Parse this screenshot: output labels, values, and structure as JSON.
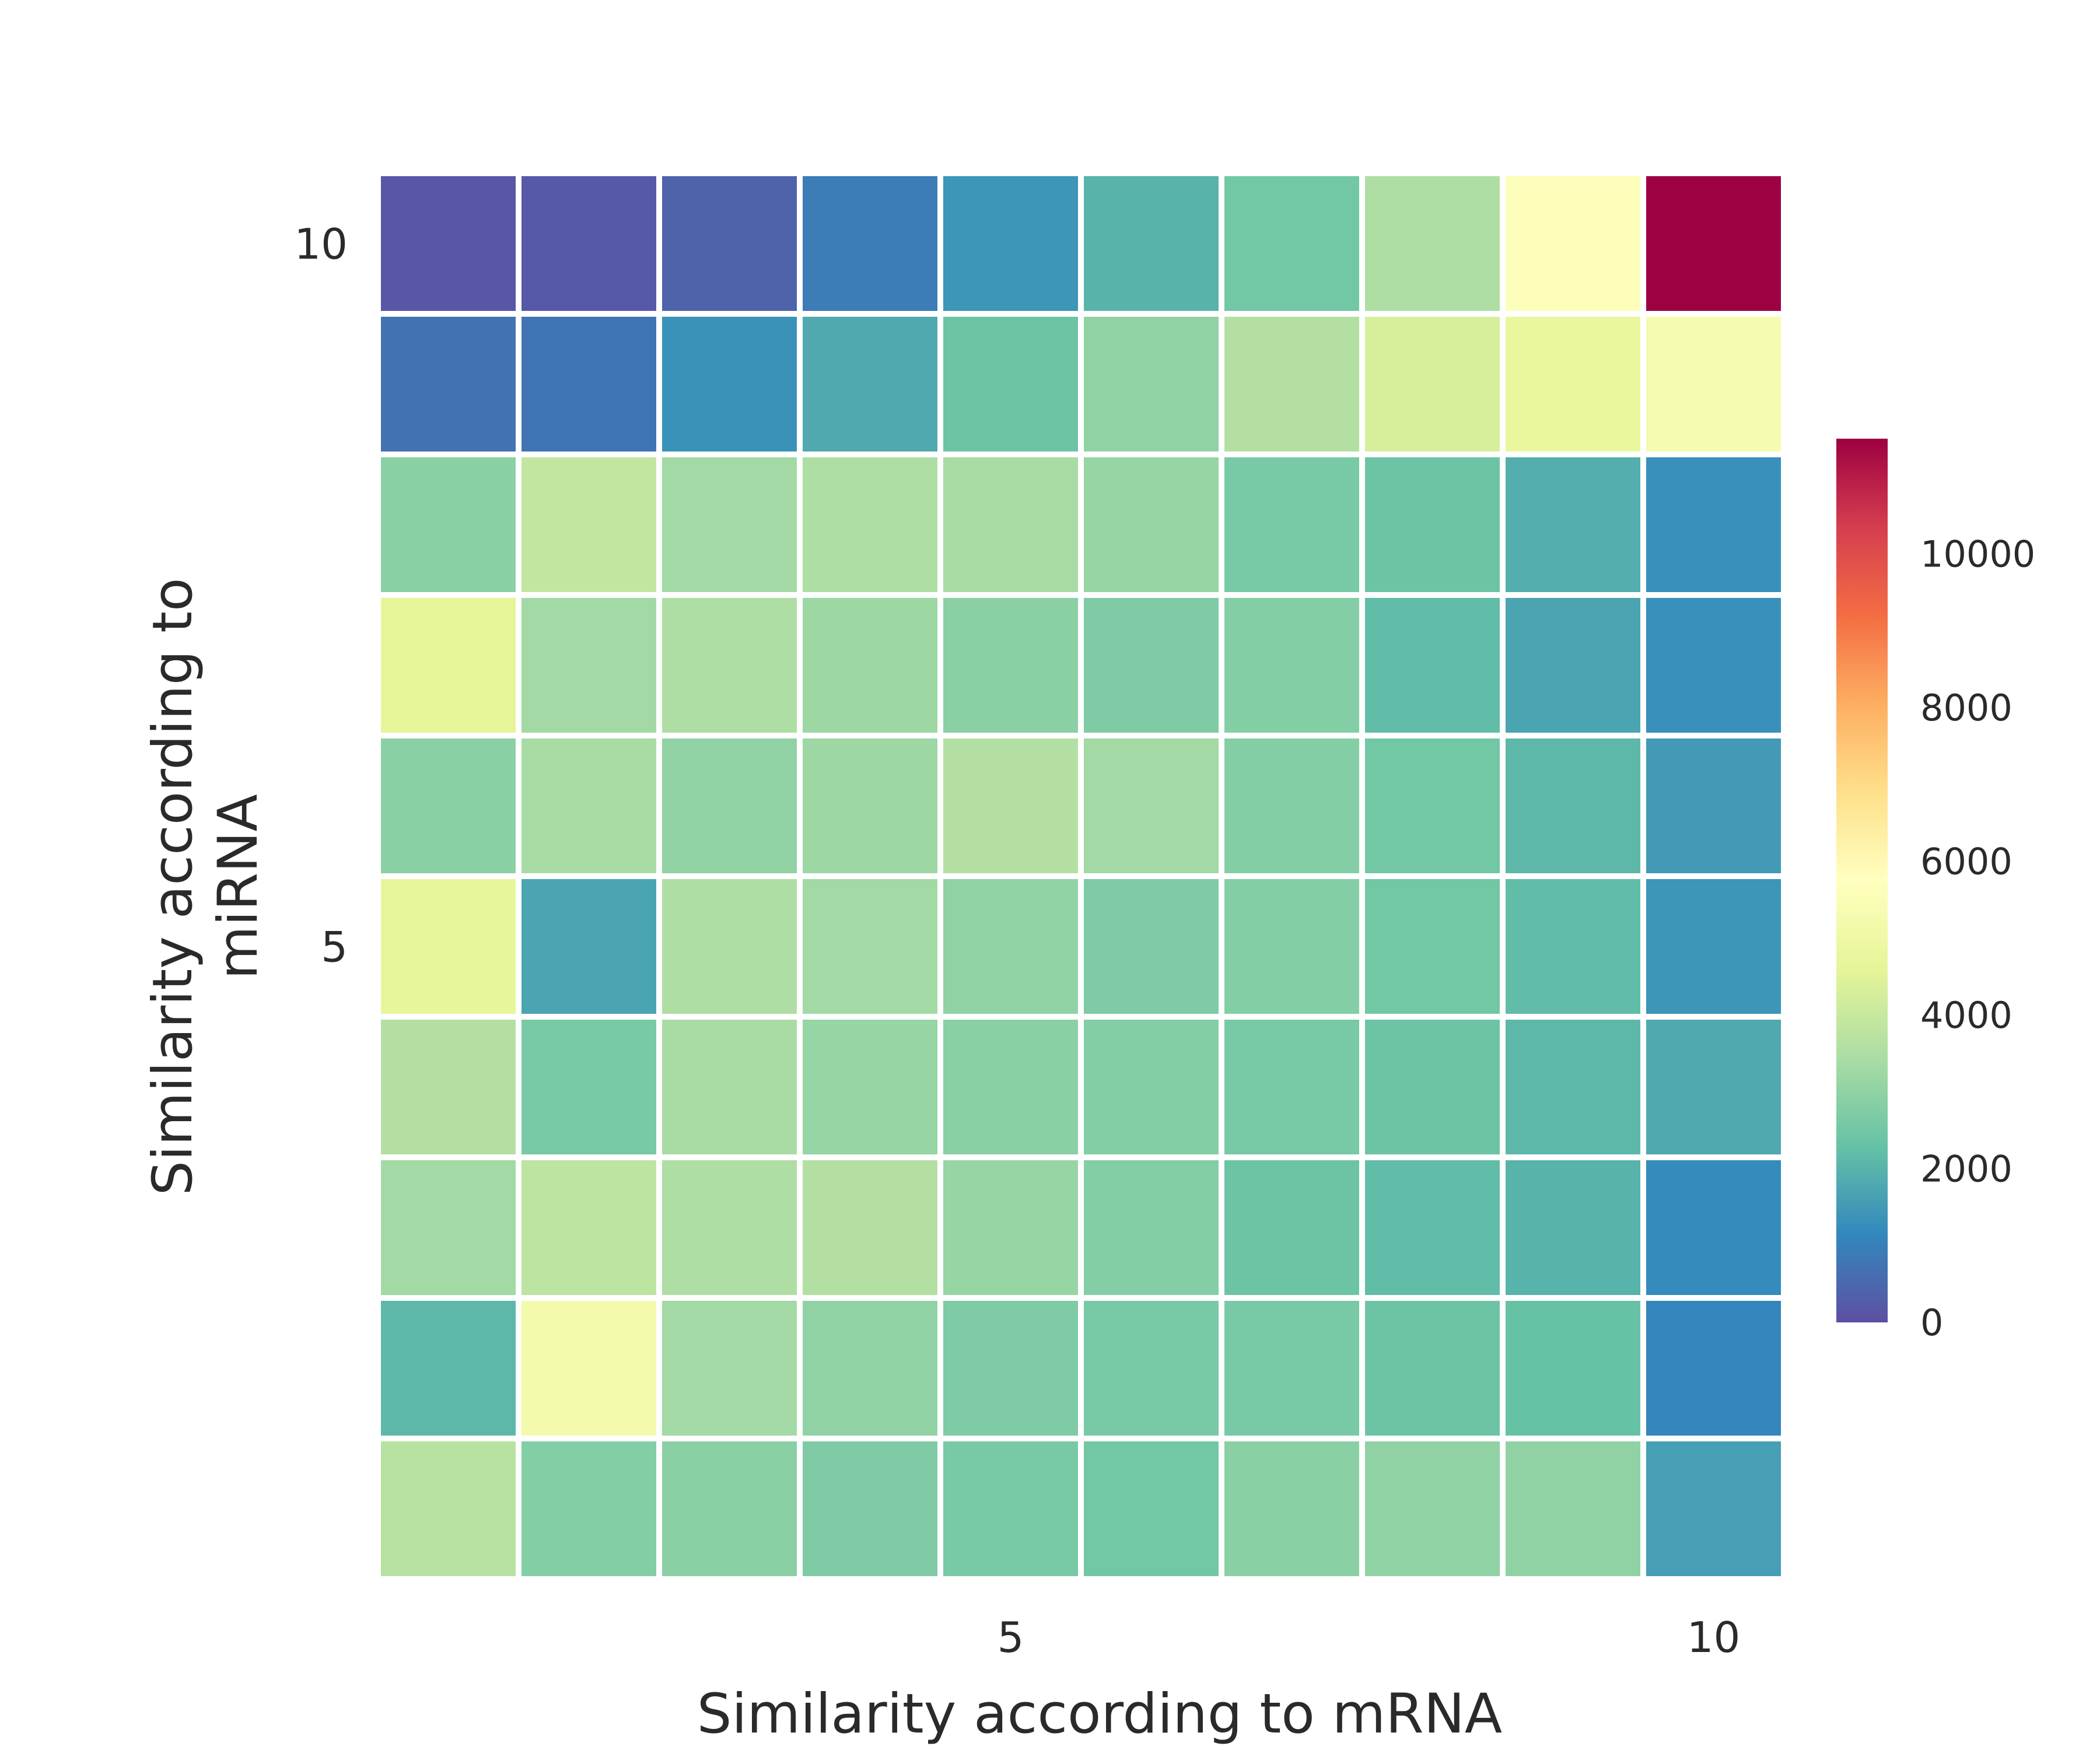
{
  "chart_data": {
    "type": "heatmap",
    "title": "",
    "xlabel": "Similarity according to mRNA",
    "ylabel_lines": [
      "Similarity according to",
      "miRNA"
    ],
    "x_ticks": [
      {
        "value": 5,
        "label": "5"
      },
      {
        "value": 10,
        "label": "10"
      }
    ],
    "y_ticks": [
      {
        "value": 5,
        "label": "5"
      },
      {
        "value": 10,
        "label": "10"
      }
    ],
    "x_range": [
      1,
      10
    ],
    "y_range": [
      1,
      10
    ],
    "colorscale": "Spectral (reversed)",
    "zlim": [
      0,
      11500
    ],
    "colorbar_ticks": [
      {
        "value": 0,
        "label": "0"
      },
      {
        "value": 2000,
        "label": "2000"
      },
      {
        "value": 4000,
        "label": "4000"
      },
      {
        "value": 6000,
        "label": "6000"
      },
      {
        "value": 8000,
        "label": "8000"
      },
      {
        "value": 10000,
        "label": "10000"
      }
    ],
    "rows_note": "rows listed from y=10 (top) down to y=1 (bottom); columns x=1..10",
    "z": [
      [
        150,
        200,
        400,
        900,
        1400,
        2000,
        2500,
        3500,
        5600,
        11500
      ],
      [
        700,
        750,
        1350,
        1800,
        2400,
        3000,
        3600,
        4300,
        4800,
        5300
      ],
      [
        2900,
        3900,
        3300,
        3500,
        3400,
        3100,
        2600,
        2400,
        1900,
        1300
      ],
      [
        4600,
        3300,
        3500,
        3200,
        2900,
        2700,
        2800,
        2200,
        1700,
        1300
      ],
      [
        2900,
        3400,
        3000,
        3200,
        3600,
        3300,
        2800,
        2500,
        2100,
        1500
      ],
      [
        4700,
        1700,
        3500,
        3300,
        3000,
        2700,
        2800,
        2500,
        2200,
        1400
      ],
      [
        3600,
        2600,
        3400,
        3100,
        2900,
        2800,
        2600,
        2400,
        2100,
        1800
      ],
      [
        3300,
        3800,
        3500,
        3600,
        3100,
        2800,
        2400,
        2200,
        2000,
        1200
      ],
      [
        2100,
        5200,
        3300,
        3000,
        2700,
        2600,
        2600,
        2400,
        2300,
        1100
      ],
      [
        3700,
        2800,
        2900,
        2700,
        2600,
        2500,
        2900,
        3000,
        3000,
        1600
      ]
    ]
  }
}
